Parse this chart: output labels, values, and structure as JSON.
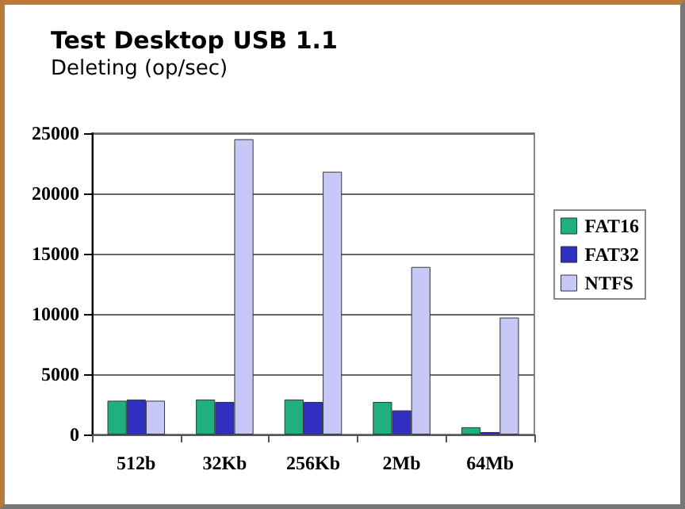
{
  "chart_data": {
    "type": "bar",
    "title": "Test Desktop USB 1.1",
    "subtitle": "Deleting (op/sec)",
    "categories": [
      "512b",
      "32Kb",
      "256Kb",
      "2Mb",
      "64Mb"
    ],
    "series": [
      {
        "name": "FAT16",
        "color": "#20b080",
        "values": [
          2800,
          2900,
          2900,
          2700,
          600
        ]
      },
      {
        "name": "FAT32",
        "color": "#3030c0",
        "values": [
          2900,
          2700,
          2700,
          2000,
          200
        ]
      },
      {
        "name": "NTFS",
        "color": "#c8c8f8",
        "values": [
          2800,
          24500,
          21800,
          13900,
          9700
        ]
      }
    ],
    "ylim": [
      0,
      25000
    ],
    "yticks": [
      0,
      5000,
      10000,
      15000,
      20000,
      25000
    ],
    "grid": "y",
    "legend": "right"
  }
}
